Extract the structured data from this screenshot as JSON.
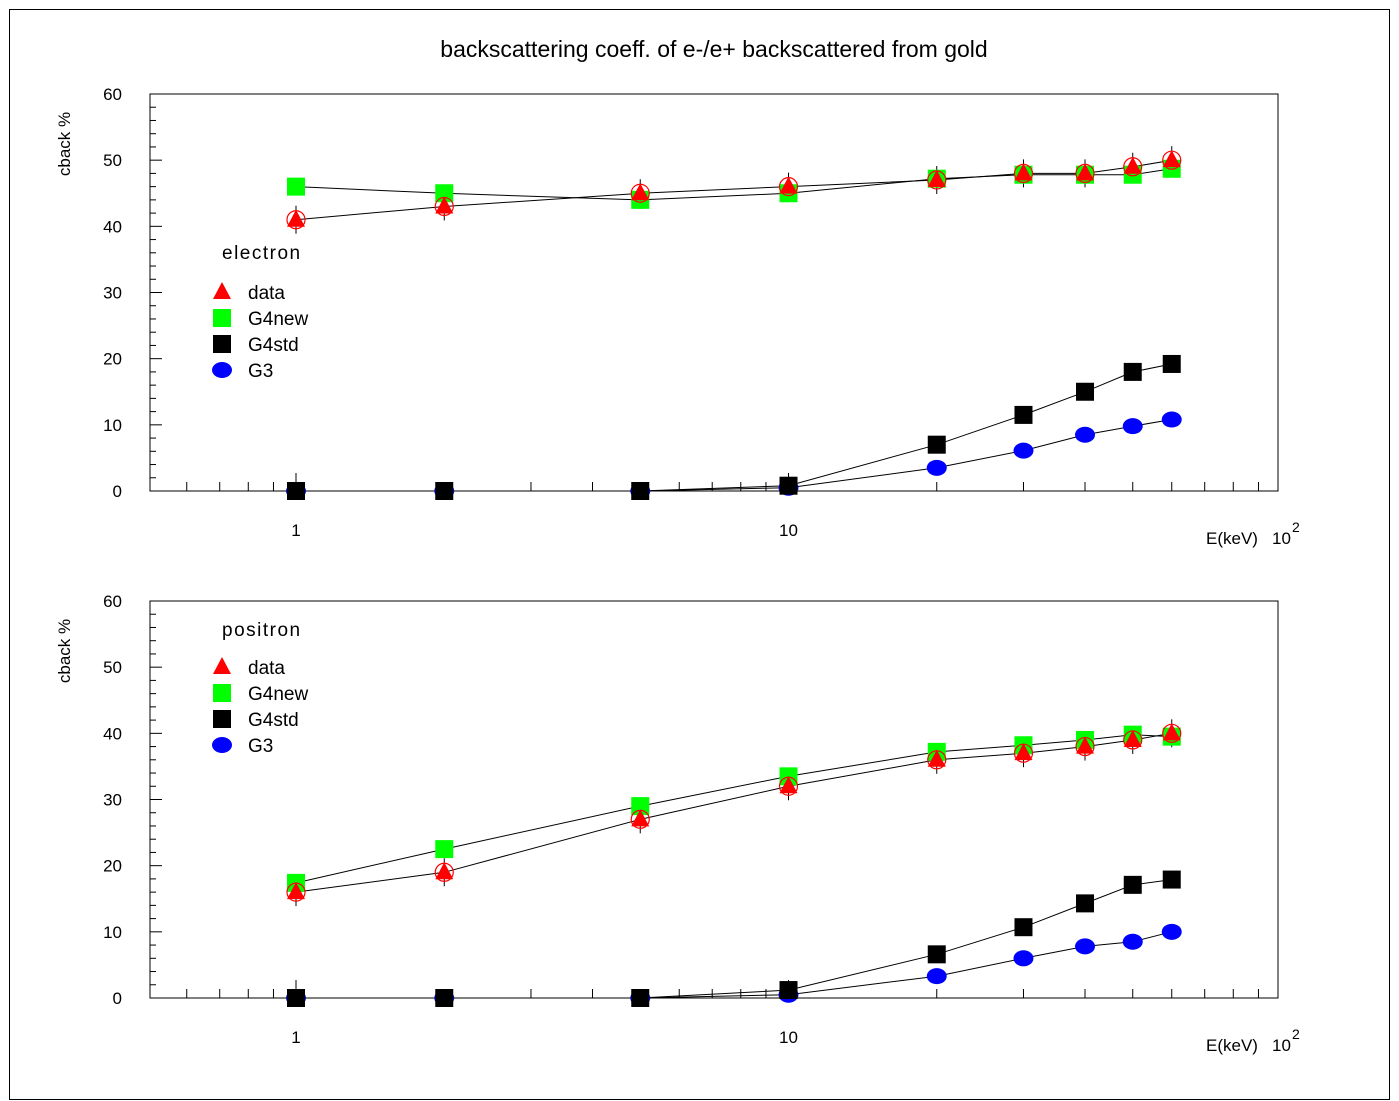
{
  "page": {
    "title": "backscattering coeff. of e-/e+ backscattered from gold"
  },
  "colors": {
    "data": "#ff0000",
    "G4new": "#00ff00",
    "G4std": "#000000",
    "G3": "#0000ff",
    "frame": "#000000"
  },
  "chart_data": [
    {
      "type": "line",
      "panel_label": "electron",
      "ylabel": "cback %",
      "xlabel": "E(keV)",
      "x_scale": "log",
      "x_tick_labels": [
        {
          "value": 1,
          "label": "1"
        },
        {
          "value": 10,
          "label": "10"
        },
        {
          "value": 100,
          "label": "10",
          "exponent": "2"
        }
      ],
      "xlim": [
        0.5,
        100
      ],
      "ylim": [
        0,
        60
      ],
      "y_ticks": [
        0,
        10,
        20,
        30,
        40,
        50,
        60
      ],
      "legend_placement": "left",
      "series": [
        {
          "name": "data",
          "marker": "triangle",
          "x": [
            1,
            2,
            5,
            10,
            20,
            30,
            40,
            50,
            60
          ],
          "values": [
            41,
            43,
            45,
            46,
            47,
            48,
            48,
            49,
            50
          ]
        },
        {
          "name": "G4new",
          "marker": "square",
          "x": [
            1,
            2,
            5,
            10,
            20,
            30,
            40,
            50,
            60
          ],
          "values": [
            46,
            45,
            44,
            45,
            47.2,
            47.8,
            47.8,
            47.8,
            48.7
          ]
        },
        {
          "name": "G4std",
          "marker": "square",
          "x": [
            1,
            2,
            5,
            10,
            20,
            30,
            40,
            50,
            60
          ],
          "values": [
            0,
            0,
            0,
            0.8,
            7,
            11.5,
            15,
            18,
            19.2
          ]
        },
        {
          "name": "G3",
          "marker": "circle",
          "x": [
            1,
            2,
            5,
            10,
            20,
            30,
            40,
            50,
            60
          ],
          "values": [
            0,
            0,
            0,
            0.5,
            3.5,
            6.1,
            8.5,
            9.8,
            10.8
          ]
        }
      ]
    },
    {
      "type": "line",
      "panel_label": "positron",
      "ylabel": "cback %",
      "xlabel": "E(keV)",
      "x_scale": "log",
      "x_tick_labels": [
        {
          "value": 1,
          "label": "1"
        },
        {
          "value": 10,
          "label": "10"
        },
        {
          "value": 100,
          "label": "10",
          "exponent": "2"
        }
      ],
      "xlim": [
        0.5,
        100
      ],
      "ylim": [
        0,
        60
      ],
      "y_ticks": [
        0,
        10,
        20,
        30,
        40,
        50,
        60
      ],
      "legend_placement": "top-left",
      "series": [
        {
          "name": "data",
          "marker": "triangle",
          "x": [
            1,
            2,
            5,
            10,
            20,
            30,
            40,
            50,
            60
          ],
          "values": [
            16,
            19,
            27,
            32,
            36,
            37,
            38,
            39,
            40
          ]
        },
        {
          "name": "G4new",
          "marker": "square",
          "x": [
            1,
            2,
            5,
            10,
            20,
            30,
            40,
            50,
            60
          ],
          "values": [
            17.4,
            22.5,
            29,
            33.5,
            37.2,
            38.2,
            39,
            39.8,
            39.5
          ]
        },
        {
          "name": "G4std",
          "marker": "square",
          "x": [
            1,
            2,
            5,
            10,
            20,
            30,
            40,
            50,
            60
          ],
          "values": [
            0,
            0,
            0,
            1.2,
            6.6,
            10.7,
            14.3,
            17.1,
            17.9
          ]
        },
        {
          "name": "G3",
          "marker": "circle",
          "x": [
            1,
            2,
            5,
            10,
            20,
            30,
            40,
            50,
            60
          ],
          "values": [
            0,
            0,
            0,
            0.5,
            3.3,
            6,
            7.8,
            8.5,
            10
          ]
        }
      ]
    }
  ]
}
